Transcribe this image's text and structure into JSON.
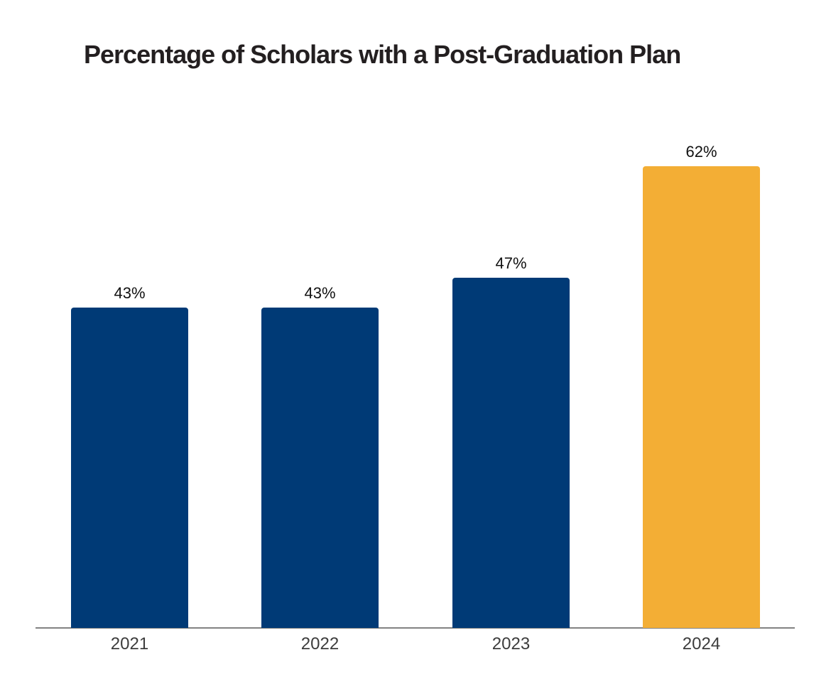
{
  "page": {
    "background": "#ffffff"
  },
  "chart_data": {
    "type": "bar",
    "title": "Percentage of Scholars with a Post-Graduation Plan",
    "categories": [
      "2021",
      "2022",
      "2023",
      "2024"
    ],
    "values": [
      43,
      43,
      47,
      62
    ],
    "value_labels": [
      "43%",
      "43%",
      "47%",
      "62%"
    ],
    "bar_colors": [
      "#003A76",
      "#003A76",
      "#003A76",
      "#F3AE35"
    ],
    "xlabel": "",
    "ylabel": "",
    "ylim": [
      0,
      100
    ],
    "grid": false,
    "legend": "none",
    "colors": {
      "title": "#231F20",
      "value_label": "#111111",
      "tick_label": "#3D3D3D",
      "axis_line": "#828282"
    }
  }
}
